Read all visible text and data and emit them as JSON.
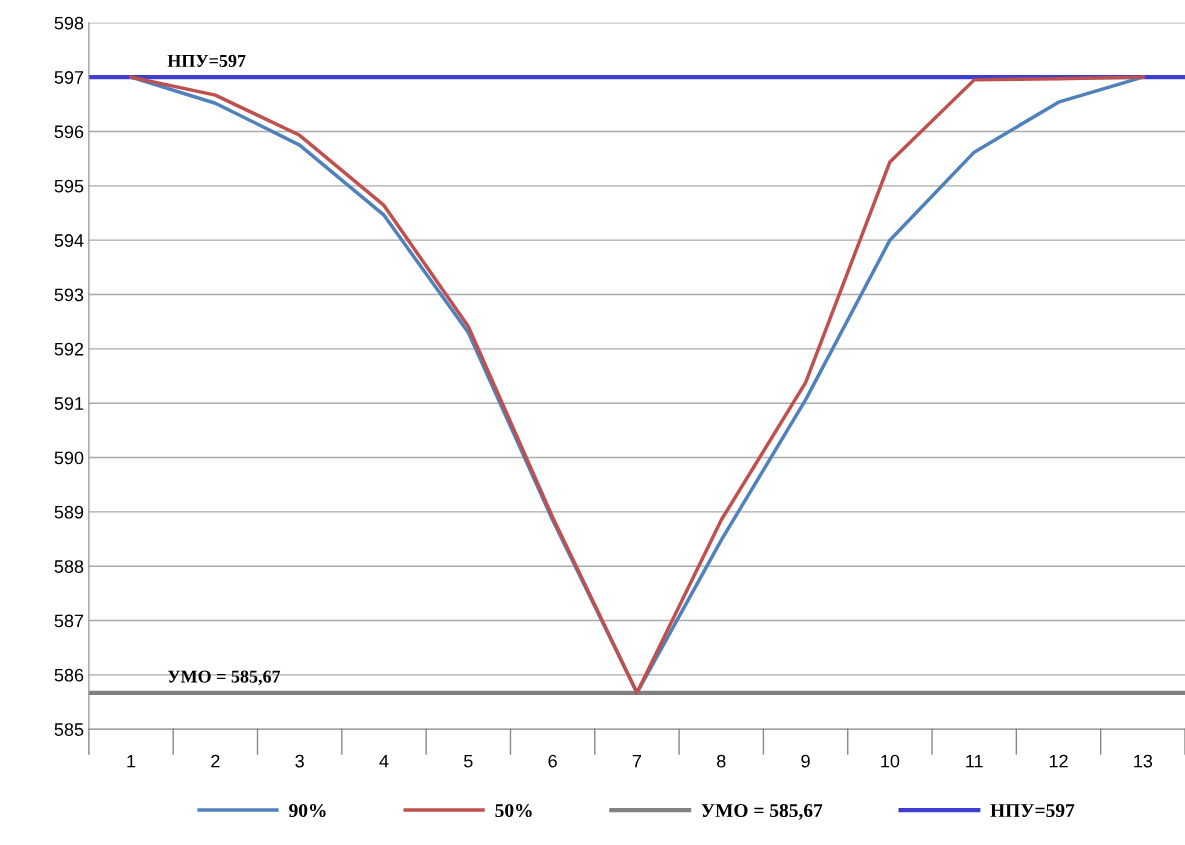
{
  "chart_data": {
    "type": "line",
    "categories": [
      "1",
      "2",
      "3",
      "4",
      "5",
      "6",
      "7",
      "8",
      "9",
      "10",
      "11",
      "12",
      "13"
    ],
    "series": [
      {
        "name": "90%",
        "color": "#4f81bd",
        "values": [
          597,
          596.52,
          595.75,
          594.46,
          592.3,
          588.85,
          585.67,
          588.48,
          591.06,
          594.0,
          595.62,
          596.54,
          597
        ]
      },
      {
        "name": "50%",
        "color": "#c0504d",
        "values": [
          597,
          596.67,
          595.93,
          594.64,
          592.41,
          588.9,
          585.67,
          588.85,
          591.38,
          595.44,
          596.95,
          596.97,
          597
        ]
      }
    ],
    "ref_lines": [
      {
        "axis": "y",
        "value": 585.67,
        "label": "УМО = 585,67",
        "color": "#808080"
      },
      {
        "axis": "y",
        "value": 597,
        "label": "НПУ=597",
        "color": "#3f3fcf"
      }
    ],
    "ylim": [
      585,
      598
    ],
    "yticks": [
      585,
      586,
      587,
      588,
      589,
      590,
      591,
      592,
      593,
      594,
      595,
      596,
      597,
      598
    ],
    "grid": "y",
    "legend": "bottom",
    "marker": "none",
    "line_style": "solid"
  }
}
